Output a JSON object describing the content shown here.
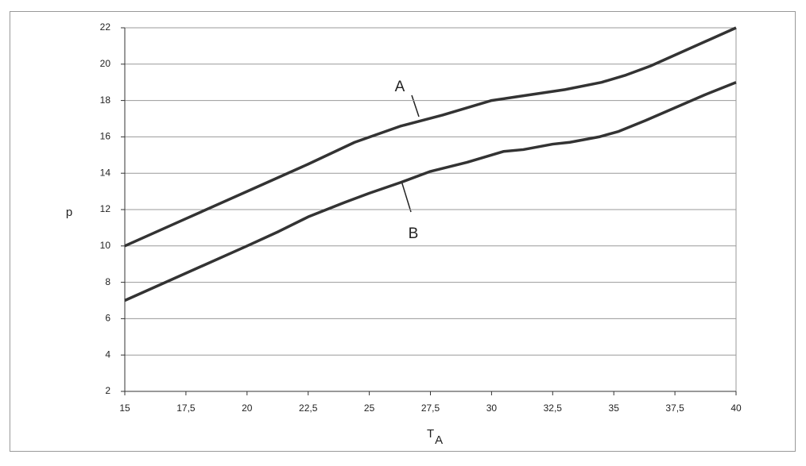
{
  "chart_data": {
    "type": "line",
    "ylabel": "p",
    "xlabel": "T",
    "xlabel_subscript": "A",
    "xlim": [
      15,
      40
    ],
    "ylim": [
      2,
      22
    ],
    "xticks": [
      15,
      {
        "value": 17.5,
        "label": "17,5"
      },
      20,
      {
        "value": 22.5,
        "label": "22,5"
      },
      25,
      {
        "value": 27.5,
        "label": "27,5"
      },
      30,
      {
        "value": 32.5,
        "label": "32,5"
      },
      35,
      {
        "value": 37.5,
        "label": "37,5"
      },
      40
    ],
    "yticks": [
      2,
      4,
      6,
      8,
      10,
      12,
      14,
      16,
      18,
      20,
      22
    ],
    "grid": true,
    "series": [
      {
        "name": "A",
        "color": "#333333",
        "x": [
          15,
          17.5,
          20,
          22.5,
          24.4,
          26.3,
          28,
          30,
          31,
          33,
          34.5,
          35.5,
          36.5,
          40
        ],
        "values": [
          10,
          11.5,
          13,
          14.5,
          15.7,
          16.6,
          17.2,
          18,
          18.2,
          18.6,
          19,
          19.4,
          19.9,
          22
        ]
      },
      {
        "name": "B",
        "color": "#333333",
        "x": [
          15,
          20,
          21.3,
          22.5,
          24,
          25,
          26.3,
          27.5,
          29,
          30.5,
          31.3,
          32.5,
          33.2,
          34.4,
          35.2,
          36.3,
          37.5,
          38.7,
          40
        ],
        "values": [
          7,
          10,
          10.8,
          11.6,
          12.4,
          12.9,
          13.5,
          14.1,
          14.6,
          15.2,
          15.3,
          15.6,
          15.7,
          16,
          16.3,
          16.9,
          17.6,
          18.3,
          19
        ]
      }
    ]
  }
}
